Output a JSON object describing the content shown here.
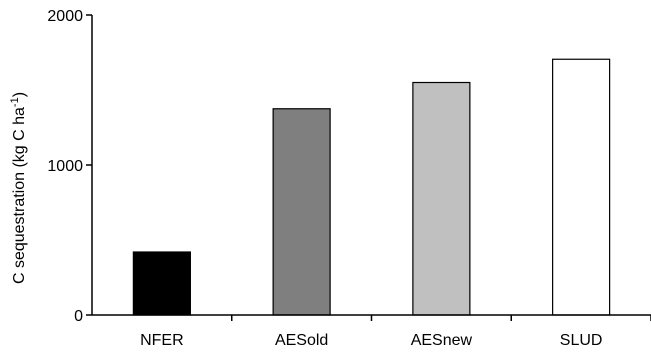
{
  "chart_data": {
    "type": "bar",
    "title": "",
    "xlabel": "",
    "ylabel": "C sequestration (kg C ha",
    "ylabel_sup": "-1",
    "ylabel_close": ")",
    "categories": [
      "NFER",
      "AESold",
      "AESnew",
      "SLUD"
    ],
    "values": [
      420,
      1375,
      1550,
      1705
    ],
    "colors": [
      "#000000",
      "#7f7f7f",
      "#c0c0c0",
      "#ffffff"
    ],
    "ylim": [
      0,
      2000
    ],
    "yticks": [
      0,
      1000,
      2000
    ],
    "ytick_labels": [
      "0",
      "1000",
      "2000"
    ],
    "grid": false,
    "legend": "none"
  }
}
